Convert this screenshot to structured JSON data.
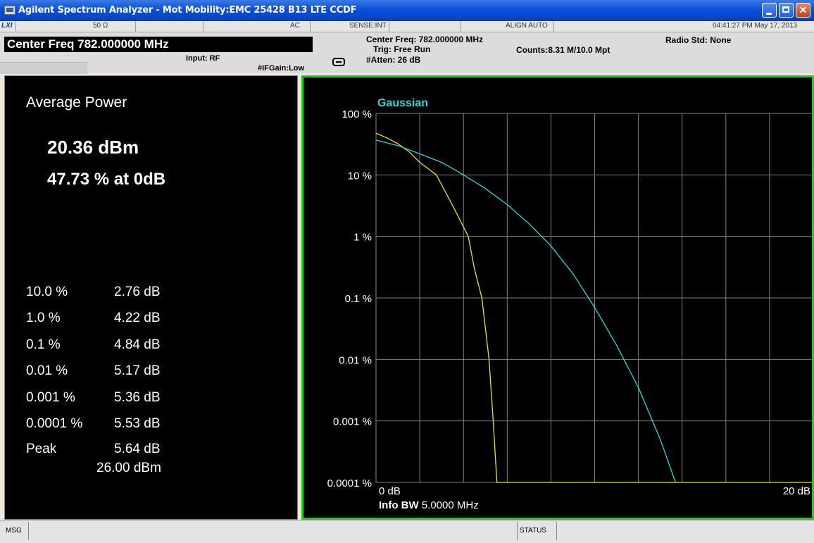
{
  "window": {
    "title": "Agilent Spectrum Analyzer - Mot Mobility:EMC 25428  B13 LTE CCDF",
    "minimize_label": "",
    "maximize_label": "",
    "close_label": "✕"
  },
  "status_row": {
    "lxi": "LXI",
    "impedance": "50 Ω",
    "coupling": "AC",
    "sense": "SENSE:INT",
    "align": "ALIGN AUTO",
    "datetime": "04:41:27 PM May 17, 2013"
  },
  "header": {
    "center_freq": "Center Freq  782.000000 MHz",
    "input": "Input: RF",
    "if_gain": "#IFGain:Low",
    "center_freq2": "Center Freq: 782.000000 MHz",
    "trig": "Trig: Free Run",
    "atten": "#Atten: 26 dB",
    "counts": "Counts:8.31 M/10.0 Mpt",
    "radio_std": "Radio Std: None"
  },
  "results": {
    "title": "Average Power",
    "avg_power": "20.36 dBm",
    "pct_at_0db": "47.73 % at 0dB",
    "rows": [
      {
        "label": "10.0 %",
        "value": "2.76 dB"
      },
      {
        "label": "1.0 %",
        "value": "4.22 dB"
      },
      {
        "label": "0.1 %",
        "value": "4.84 dB"
      },
      {
        "label": "0.01 %",
        "value": "5.17 dB"
      },
      {
        "label": "0.001 %",
        "value": "5.36 dB"
      },
      {
        "label": "0.0001 %",
        "value": "5.53 dB"
      },
      {
        "label": "Peak",
        "value": "5.64 dB"
      }
    ],
    "peak_dbm": "26.00 dBm"
  },
  "chart_data": {
    "type": "line",
    "legend_label": "Gaussian",
    "x_min_label": "0 dB",
    "x_max_label": "20 dB",
    "xlim": [
      0,
      20
    ],
    "y_scale": "log",
    "ylim_percent": [
      0.0001,
      100
    ],
    "y_tick_labels": [
      "100 %",
      "10 %",
      "1 %",
      "0.1 %",
      "0.01 %",
      "0.001 %",
      "0.0001 %"
    ],
    "info_bw_label": "Info BW",
    "info_bw_value": "5.0000 MHz",
    "grid": true,
    "series": [
      {
        "color": "#e6e628",
        "points": [
          [
            0,
            47.73
          ],
          [
            0.5,
            40
          ],
          [
            1,
            32
          ],
          [
            1.5,
            24
          ],
          [
            2,
            16
          ],
          [
            2.76,
            10
          ],
          [
            3.5,
            3.2
          ],
          [
            4.22,
            1.0
          ],
          [
            4.5,
            0.3
          ],
          [
            4.84,
            0.1
          ],
          [
            5.17,
            0.01
          ],
          [
            5.36,
            0.001
          ],
          [
            5.53,
            0.0001
          ],
          [
            5.64,
            0.0001
          ],
          [
            20,
            0.0001
          ]
        ]
      },
      {
        "color": "#28d8d8",
        "points": [
          [
            0,
            36.8
          ],
          [
            1,
            30
          ],
          [
            2,
            22
          ],
          [
            3,
            16
          ],
          [
            4,
            10
          ],
          [
            5,
            6
          ],
          [
            6,
            3.3
          ],
          [
            7,
            1.6
          ],
          [
            8,
            0.7
          ],
          [
            9,
            0.25
          ],
          [
            10,
            0.07
          ],
          [
            11,
            0.017
          ],
          [
            12,
            0.0035
          ],
          [
            13,
            0.0005
          ],
          [
            13.7,
            0.0001
          ]
        ]
      }
    ],
    "colors": {
      "grid": "#808080",
      "axis_text": "#ffffff",
      "legend": "#28d8d8",
      "frame": "#18d018"
    }
  },
  "bottom": {
    "msg": "MSG",
    "status": "STATUS"
  }
}
